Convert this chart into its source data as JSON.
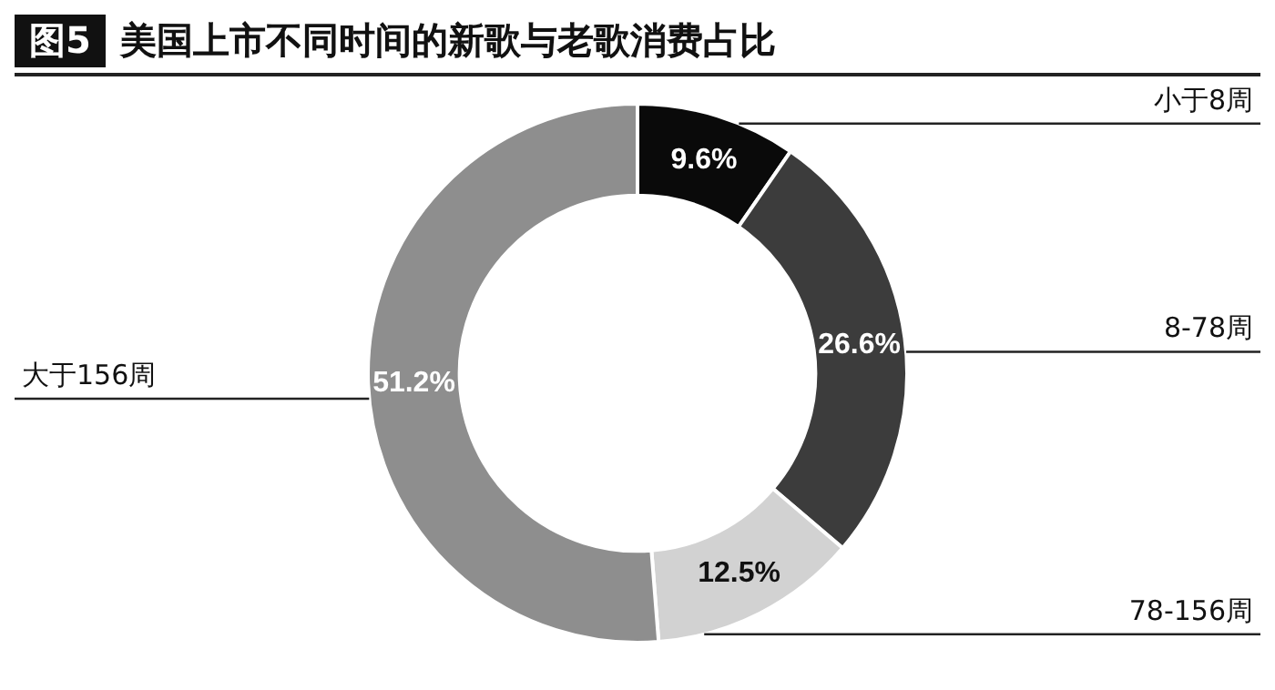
{
  "chart_data": {
    "type": "donut",
    "title": "美国上市不同时间的新歌与老歌消费占比",
    "annotations": [
      "图5"
    ],
    "categories": [
      "小于8周",
      "8-78周",
      "78-156周",
      "大于156周"
    ],
    "values": [
      9.6,
      26.6,
      12.5,
      51.2
    ],
    "colors": [
      "#0a0a0a",
      "#3c3c3c",
      "#d2d2d2",
      "#8e8e8e"
    ],
    "value_labels": [
      "9.6%",
      "26.6%",
      "12.5%",
      "51.2%"
    ]
  }
}
